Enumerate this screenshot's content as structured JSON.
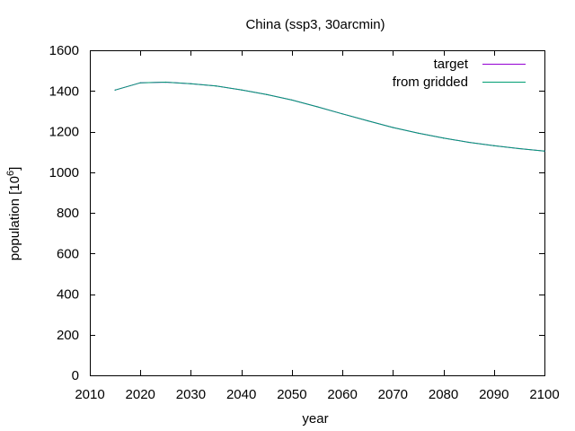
{
  "chart_data": {
    "type": "line",
    "title": "China (ssp3, 30arcmin)",
    "xlabel": "year",
    "ylabel_text": "population [10",
    "ylabel_sup": "6",
    "ylabel_close": "]",
    "xlim": [
      2010,
      2100
    ],
    "ylim": [
      0,
      1600
    ],
    "xticks": [
      2010,
      2020,
      2030,
      2040,
      2050,
      2060,
      2070,
      2080,
      2090,
      2100
    ],
    "yticks": [
      0,
      200,
      400,
      600,
      800,
      1000,
      1200,
      1400,
      1600
    ],
    "grid": false,
    "legend_position": "top-right",
    "series": [
      {
        "name": "target",
        "color": "#9400d3",
        "x": [
          2015,
          2020,
          2025,
          2030,
          2035,
          2040,
          2045,
          2050,
          2055,
          2060,
          2065,
          2070,
          2075,
          2080,
          2085,
          2090,
          2095,
          2100
        ],
        "y": [
          1404,
          1440,
          1443,
          1435,
          1424,
          1405,
          1382,
          1355,
          1322,
          1287,
          1253,
          1220,
          1192,
          1168,
          1147,
          1130,
          1116,
          1104
        ]
      },
      {
        "name": "from gridded",
        "color": "#009e73",
        "x": [
          2015,
          2020,
          2025,
          2030,
          2035,
          2040,
          2045,
          2050,
          2055,
          2060,
          2065,
          2070,
          2075,
          2080,
          2085,
          2090,
          2095,
          2100
        ],
        "y": [
          1404,
          1440,
          1443,
          1435,
          1424,
          1405,
          1382,
          1355,
          1322,
          1287,
          1253,
          1220,
          1192,
          1168,
          1147,
          1130,
          1116,
          1104
        ]
      }
    ]
  }
}
